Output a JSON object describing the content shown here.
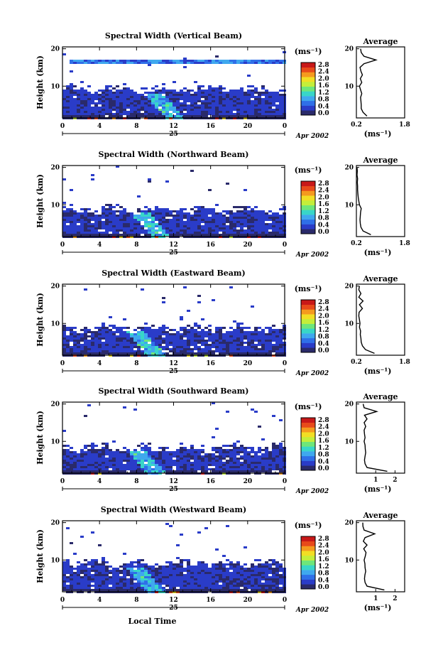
{
  "figure": {
    "xlabel": "Local Time",
    "date_label": "Apr 2002",
    "day_label": "25",
    "height_label": "Height (km)",
    "cb_unit": "(ms⁻¹)",
    "avg_title": "Average",
    "avg_xlabel": "(ms⁻¹)",
    "x_ticks": [
      "0",
      "4",
      "8",
      "12",
      "16",
      "20",
      "0"
    ],
    "y_ticks": [
      "20",
      "10"
    ],
    "cb_ticks": [
      "2.8",
      "2.4",
      "2.0",
      "1.6",
      "1.2",
      "0.8",
      "0.4",
      "0.0"
    ],
    "colormap": [
      "#2a2a6a",
      "#2a3cc8",
      "#2f6fe8",
      "#3fa8ee",
      "#38d6c8",
      "#6ee67a",
      "#c4ee3a",
      "#f2de24",
      "#f59a1e",
      "#e84a1a",
      "#c81818"
    ]
  },
  "chart_data": [
    {
      "type": "heatmap",
      "title": "Spectral Width (Vertical Beam)",
      "xlim": [
        0,
        24
      ],
      "ylim": [
        1.5,
        20.5
      ],
      "clim": [
        0.0,
        3.0
      ],
      "description_values": {
        "echo_top_km": 9.0,
        "layer_km": 17.0,
        "burst_hour": 11.5
      },
      "avg": {
        "xlim": [
          0.2,
          1.8
        ],
        "x_ticks": [
          "0.2",
          "1.8"
        ],
        "height_km": [
          2,
          3,
          4,
          5,
          6,
          7,
          8,
          9,
          10,
          11,
          12,
          13,
          14,
          15,
          16,
          17,
          18,
          19,
          20
        ],
        "width": [
          0.55,
          0.42,
          0.36,
          0.36,
          0.35,
          0.34,
          0.38,
          0.34,
          0.3,
          0.38,
          0.33,
          0.4,
          0.35,
          0.32,
          0.45,
          0.85,
          0.45,
          0.36,
          0.34
        ]
      }
    },
    {
      "type": "heatmap",
      "title": "Spectral Width (Northward Beam)",
      "xlim": [
        0,
        24
      ],
      "ylim": [
        1.5,
        20.5
      ],
      "clim": [
        0.0,
        3.0
      ],
      "description_values": {
        "echo_top_km": 8.5,
        "burst_hour": 10.0
      },
      "avg": {
        "xlim": [
          0.2,
          1.8
        ],
        "x_ticks": [
          "0.2",
          "1.8"
        ],
        "height_km": [
          2,
          3,
          4,
          5,
          6,
          7,
          8,
          9,
          10,
          11,
          12,
          13,
          14,
          15,
          16,
          17,
          18,
          19,
          20
        ],
        "width": [
          0.68,
          0.42,
          0.35,
          0.33,
          0.32,
          0.33,
          0.34,
          0.36,
          0.3,
          0.28,
          0.26,
          0.25,
          0.24,
          0.24,
          0.23,
          0.24,
          0.22,
          0.23,
          0.22
        ]
      }
    },
    {
      "type": "heatmap",
      "title": "Spectral Width (Eastward Beam)",
      "xlim": [
        0,
        24
      ],
      "ylim": [
        1.5,
        20.5
      ],
      "clim": [
        0.0,
        3.0
      ],
      "description_values": {
        "echo_top_km": 8.5,
        "burst_hour": 9.5
      },
      "avg": {
        "xlim": [
          0.2,
          1.8
        ],
        "x_ticks": [
          "0.2",
          "1.8"
        ],
        "height_km": [
          2,
          3,
          4,
          5,
          6,
          7,
          8,
          9,
          10,
          11,
          12,
          13,
          14,
          15,
          16,
          17,
          18,
          19,
          20
        ],
        "width": [
          0.8,
          0.5,
          0.4,
          0.36,
          0.35,
          0.33,
          0.34,
          0.3,
          0.32,
          0.3,
          0.28,
          0.29,
          0.4,
          0.3,
          0.42,
          0.28,
          0.35,
          0.28,
          0.3
        ]
      }
    },
    {
      "type": "heatmap",
      "title": "Spectral Width (Southward Beam)",
      "xlim": [
        0,
        24
      ],
      "ylim": [
        1.5,
        20.5
      ],
      "clim": [
        0.0,
        3.0
      ],
      "description_values": {
        "echo_top_km": 8.0,
        "burst_hour": 9.5
      },
      "avg": {
        "xlim": [
          0.0,
          2.5
        ],
        "x_ticks": [
          "1",
          "2"
        ],
        "height_km": [
          2,
          3,
          4,
          5,
          6,
          7,
          8,
          9,
          10,
          11,
          12,
          13,
          14,
          15,
          16,
          17,
          18,
          19,
          20
        ],
        "width": [
          1.6,
          0.55,
          0.45,
          0.42,
          0.45,
          0.48,
          0.46,
          0.45,
          0.4,
          0.45,
          0.42,
          0.4,
          0.48,
          0.4,
          0.55,
          0.42,
          1.05,
          0.4,
          0.35
        ]
      }
    },
    {
      "type": "heatmap",
      "title": "Spectral Width (Westward Beam)",
      "xlim": [
        0,
        24
      ],
      "ylim": [
        1.5,
        20.5
      ],
      "clim": [
        0.0,
        3.0
      ],
      "description_values": {
        "echo_top_km": 9.0,
        "burst_hour": 9.5
      },
      "avg": {
        "xlim": [
          0.0,
          2.5
        ],
        "x_ticks": [
          "1",
          "2"
        ],
        "height_km": [
          2,
          3,
          4,
          5,
          6,
          7,
          8,
          9,
          10,
          11,
          12,
          13,
          14,
          15,
          16,
          17,
          18,
          19,
          20
        ],
        "width": [
          1.45,
          0.55,
          0.45,
          0.42,
          0.44,
          0.48,
          0.45,
          0.44,
          0.4,
          0.46,
          0.5,
          0.38,
          0.55,
          0.36,
          0.45,
          0.95,
          0.4,
          0.34,
          0.33
        ]
      }
    }
  ]
}
